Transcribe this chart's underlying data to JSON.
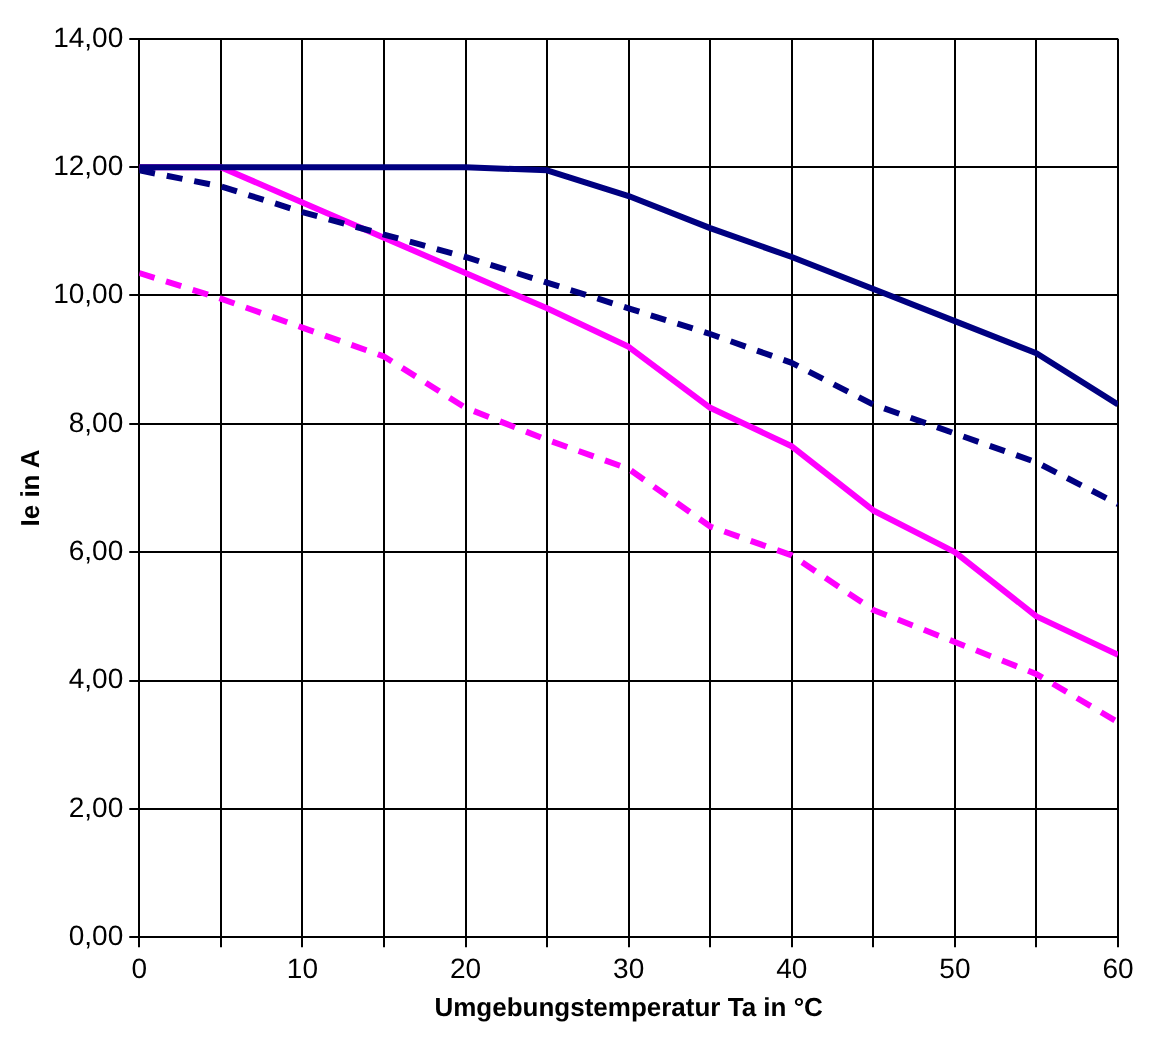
{
  "chart_data": {
    "type": "line",
    "xlabel": "Umgebungstemperatur Ta in °C",
    "ylabel": "Ie in A",
    "x": [
      0,
      5,
      10,
      15,
      20,
      25,
      30,
      35,
      40,
      45,
      50,
      55,
      60
    ],
    "series": [
      {
        "color": "#000080",
        "line_style": "solid",
        "values": [
          12,
          12,
          12,
          12,
          12,
          11.95,
          11.55,
          11.05,
          10.6,
          10.1,
          9.6,
          9.1,
          8.3
        ]
      },
      {
        "color": "#000080",
        "line_style": "dashed",
        "values": [
          11.95,
          11.7,
          11.3,
          10.95,
          10.6,
          10.2,
          9.8,
          9.4,
          8.95,
          8.3,
          7.85,
          7.4,
          6.75
        ]
      },
      {
        "color": "#ff00ff",
        "line_style": "solid",
        "values": [
          12,
          12,
          11.45,
          10.9,
          10.35,
          9.8,
          9.2,
          8.25,
          7.65,
          6.65,
          6,
          5,
          4.4
        ]
      },
      {
        "color": "#ff00ff",
        "line_style": "dashed",
        "values": [
          10.35,
          9.95,
          9.5,
          9.05,
          8.25,
          7.75,
          7.3,
          6.4,
          5.95,
          5.1,
          4.6,
          4.1,
          3.35
        ]
      }
    ],
    "xlim": [
      0,
      60
    ],
    "ylim": [
      0,
      14
    ],
    "xticks": [
      0,
      {
        "value": 5,
        "label": null
      },
      10,
      {
        "value": 15,
        "label": null
      },
      20,
      {
        "value": 25,
        "label": null
      },
      30,
      {
        "value": 35,
        "label": null
      },
      40,
      {
        "value": 45,
        "label": null
      },
      50,
      {
        "value": 55,
        "label": null
      },
      60
    ],
    "yticks": [
      {
        "value": 0,
        "label": "0,00"
      },
      {
        "value": 2,
        "label": "2,00"
      },
      {
        "value": 4,
        "label": "4,00"
      },
      {
        "value": 6,
        "label": "6,00"
      },
      {
        "value": 8,
        "label": "8,00"
      },
      {
        "value": 10,
        "label": "10,00"
      },
      {
        "value": 12,
        "label": "12,00"
      },
      {
        "value": 14,
        "label": "14,00"
      }
    ],
    "grid": true,
    "legend": false,
    "marker": "none"
  }
}
